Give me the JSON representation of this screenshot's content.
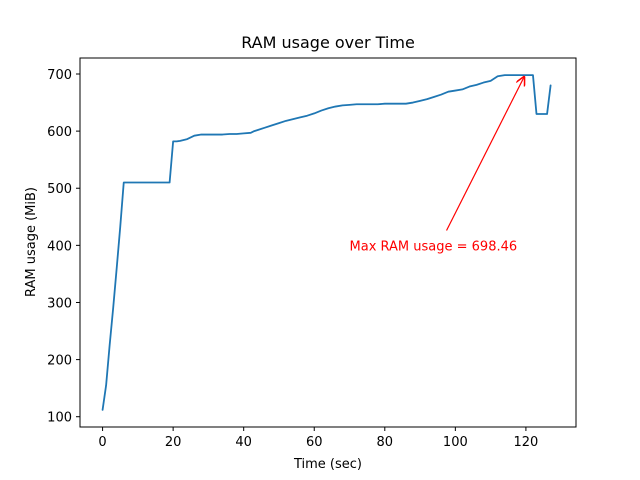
{
  "chart_data": {
    "type": "line",
    "title": "RAM usage over Time",
    "xlabel": "Time (sec)",
    "ylabel": "RAM usage (MiB)",
    "xlim": [
      -6.4,
      134.2
    ],
    "ylim": [
      82,
      728
    ],
    "xticks": [
      0,
      20,
      40,
      60,
      80,
      100,
      120
    ],
    "yticks": [
      100,
      200,
      300,
      400,
      500,
      600,
      700
    ],
    "grid": false,
    "legend": "none",
    "colors": {
      "line": "#1f77b4",
      "annotation": "#ff0000",
      "axes": "#000000"
    },
    "series": [
      {
        "x": [
          0,
          1,
          2,
          3,
          4,
          5,
          6,
          7,
          8,
          9,
          10,
          12,
          14,
          16,
          18,
          19,
          20,
          21,
          22,
          24,
          26,
          28,
          30,
          32,
          34,
          36,
          38,
          40,
          42,
          43,
          44,
          46,
          48,
          50,
          52,
          54,
          56,
          58,
          60,
          62,
          64,
          66,
          68,
          70,
          72,
          74,
          76,
          78,
          80,
          82,
          84,
          86,
          88,
          90,
          92,
          94,
          96,
          98,
          100,
          102,
          104,
          106,
          108,
          110,
          112,
          114,
          116,
          118,
          120,
          121,
          122,
          123,
          124,
          125,
          126,
          127
        ],
        "y": [
          112,
          155,
          225,
          290,
          360,
          432,
          510,
          510,
          510,
          510,
          510,
          510,
          510,
          510,
          510,
          510,
          582,
          582,
          583,
          586,
          592,
          594,
          594,
          594,
          594,
          595,
          595,
          596,
          597,
          600,
          602,
          606,
          610,
          614,
          618,
          621,
          624,
          627,
          631,
          636,
          640,
          643,
          645,
          646,
          647,
          647,
          647,
          647,
          648,
          648,
          648,
          648,
          650,
          653,
          656,
          660,
          664,
          669,
          671,
          673,
          678,
          681,
          685,
          688,
          696,
          698,
          698,
          698,
          698,
          698,
          698,
          630,
          630,
          630,
          630,
          680
        ]
      }
    ],
    "annotation": {
      "text": "Max RAM usage = 698.46",
      "xy": [
        119.5,
        698.46
      ],
      "xytext": [
        70,
        400
      ]
    }
  }
}
